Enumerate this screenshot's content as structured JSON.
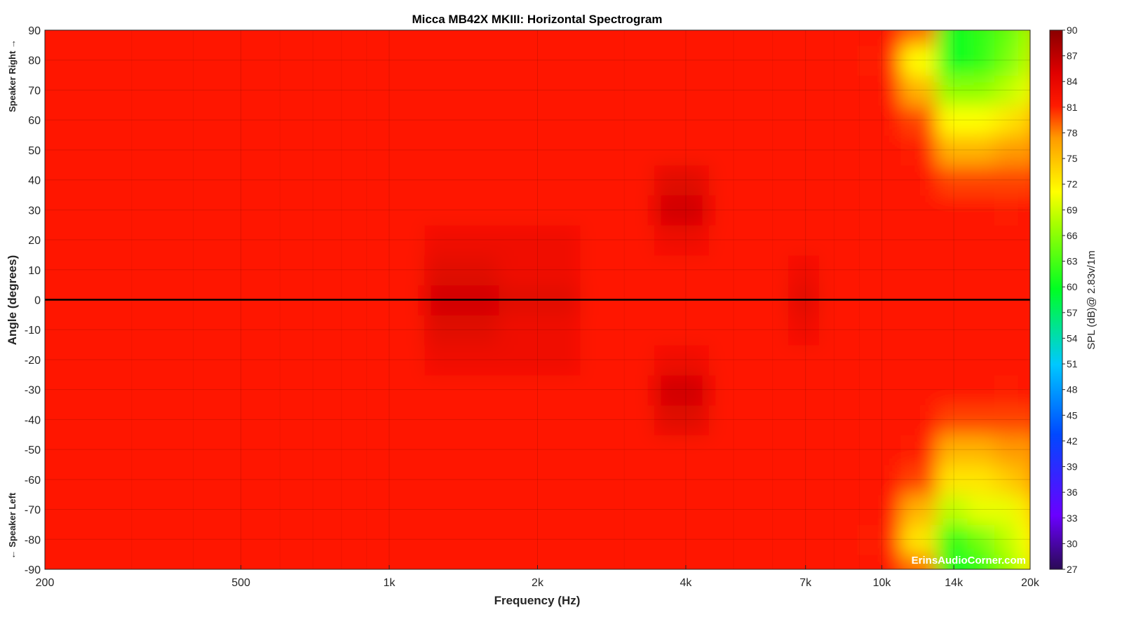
{
  "chart_data": {
    "type": "heatmap",
    "title": "Micca MB42X MKIII: Horizontal Spectrogram",
    "xlabel": "Frequency (Hz)",
    "ylabel": "Angle (degrees)",
    "x_scale": "log",
    "xlim": [
      200,
      20000
    ],
    "ylim": [
      -90,
      90
    ],
    "x_ticks": [
      200,
      500,
      1000,
      2000,
      4000,
      7000,
      10000,
      14000,
      20000
    ],
    "x_tick_labels": [
      "200",
      "500",
      "1k",
      "2k",
      "4k",
      "7k",
      "10k",
      "14k",
      "20k"
    ],
    "y_ticks": [
      90,
      80,
      70,
      60,
      50,
      40,
      30,
      20,
      10,
      0,
      -10,
      -20,
      -30,
      -40,
      -50,
      -60,
      -70,
      -80,
      -90
    ],
    "y_tick_labels": [
      "90",
      "80",
      "70",
      "60",
      "50",
      "40",
      "30",
      "20",
      "10",
      "0",
      "-10",
      "-20",
      "-30",
      "-40",
      "-50",
      "-60",
      "-70",
      "-80",
      "-90"
    ],
    "side_label_top": "Speaker Right →",
    "side_label_bottom": "← Speaker Left",
    "colorbar": {
      "label": "SPL (dB)@ 2.83v/1m",
      "range": [
        27,
        90
      ],
      "ticks": [
        90,
        87,
        84,
        81,
        78,
        75,
        72,
        69,
        66,
        63,
        60,
        57,
        54,
        51,
        48,
        45,
        42,
        39,
        36,
        33,
        30,
        27
      ],
      "tick_labels": [
        "90",
        "87",
        "84",
        "81",
        "78",
        "75",
        "72",
        "69",
        "66",
        "63",
        "60",
        "57",
        "54",
        "51",
        "48",
        "45",
        "42",
        "39",
        "36",
        "33",
        "30",
        "27"
      ],
      "colormap": "jet-like (dark red high, red, yellow, green, cyan, blue, violet low)"
    },
    "reference_line_angle": 0,
    "grid": true,
    "frequencies_hz": [
      200,
      300,
      500,
      1000,
      1400,
      2000,
      3000,
      4000,
      5000,
      6000,
      7000,
      8000,
      10000,
      12000,
      14000,
      16000,
      18000,
      20000
    ],
    "angles_deg": [
      -90,
      -80,
      -70,
      -60,
      -50,
      -40,
      -30,
      -20,
      -10,
      0,
      10,
      20,
      30,
      40,
      50,
      60,
      70,
      80,
      90
    ],
    "spl_db": [
      [
        79,
        80,
        80,
        80,
        80,
        80,
        80,
        80,
        80,
        80,
        80,
        80,
        79,
        76,
        60,
        62,
        66,
        70
      ],
      [
        80,
        81,
        80,
        80,
        80,
        80,
        80,
        80,
        80,
        80,
        80,
        80,
        78,
        72,
        62,
        65,
        68,
        71
      ],
      [
        80,
        81,
        80,
        80,
        80,
        80,
        80,
        80,
        80,
        80,
        80,
        80,
        79,
        74,
        68,
        70,
        70,
        72
      ],
      [
        80,
        80,
        80,
        80,
        80,
        80,
        80,
        80,
        80,
        80,
        80,
        80,
        80,
        77,
        72,
        72,
        73,
        74
      ],
      [
        80,
        80,
        80,
        80,
        80,
        80,
        80,
        80,
        80,
        80,
        80,
        80,
        80,
        78,
        74,
        74,
        75,
        75
      ],
      [
        80,
        80,
        80,
        80,
        80,
        80,
        80,
        83,
        81,
        80,
        80,
        80,
        80,
        79,
        77,
        77,
        77,
        77
      ],
      [
        80,
        80,
        80,
        80,
        81,
        81,
        80,
        84,
        81,
        80,
        80,
        80,
        80,
        80,
        79,
        79,
        78,
        79
      ],
      [
        80,
        80,
        80,
        80,
        82,
        82,
        81,
        82,
        80,
        80,
        80,
        80,
        80,
        80,
        80,
        80,
        80,
        80
      ],
      [
        80,
        80,
        80,
        80,
        83,
        82,
        81,
        81,
        81,
        81,
        82,
        80,
        80,
        80,
        80,
        80,
        80,
        80
      ],
      [
        80,
        80,
        80,
        80,
        84,
        83,
        81,
        81,
        81,
        81,
        83,
        80,
        80,
        80,
        80,
        80,
        81,
        80
      ],
      [
        80,
        80,
        80,
        80,
        83,
        82,
        81,
        81,
        81,
        81,
        82,
        80,
        80,
        80,
        80,
        80,
        80,
        80
      ],
      [
        80,
        80,
        80,
        80,
        82,
        82,
        81,
        82,
        80,
        80,
        80,
        80,
        80,
        80,
        80,
        80,
        80,
        80
      ],
      [
        80,
        80,
        80,
        80,
        81,
        81,
        80,
        84,
        81,
        80,
        80,
        80,
        80,
        80,
        79,
        79,
        78,
        79
      ],
      [
        80,
        80,
        80,
        80,
        80,
        80,
        80,
        83,
        81,
        80,
        80,
        80,
        80,
        79,
        77,
        77,
        77,
        77
      ],
      [
        80,
        80,
        80,
        80,
        80,
        80,
        80,
        80,
        80,
        80,
        80,
        80,
        80,
        78,
        74,
        74,
        75,
        75
      ],
      [
        80,
        80,
        80,
        80,
        80,
        80,
        80,
        80,
        80,
        80,
        80,
        80,
        80,
        77,
        71,
        71,
        72,
        73
      ],
      [
        80,
        81,
        80,
        80,
        80,
        80,
        80,
        80,
        80,
        80,
        80,
        80,
        79,
        74,
        66,
        66,
        68,
        70
      ],
      [
        80,
        81,
        80,
        80,
        80,
        80,
        80,
        80,
        80,
        80,
        80,
        80,
        78,
        71,
        60,
        62,
        65,
        68
      ],
      [
        79,
        80,
        80,
        80,
        80,
        80,
        80,
        80,
        80,
        80,
        80,
        80,
        79,
        76,
        60,
        62,
        64,
        67
      ]
    ]
  },
  "watermark": "ErinsAudioCorner.com"
}
